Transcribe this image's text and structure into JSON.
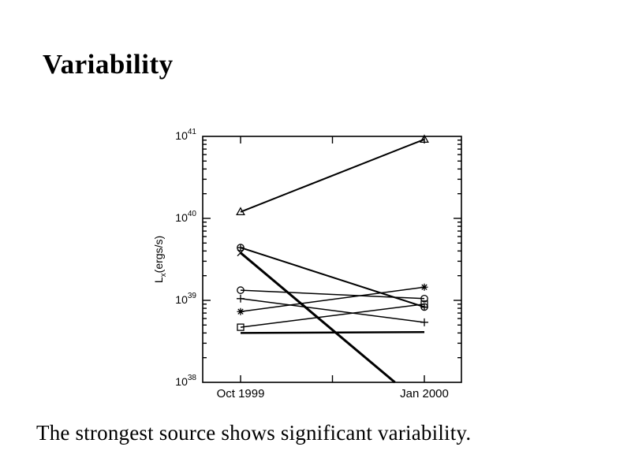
{
  "slide": {
    "title": "Variability",
    "caption": "The strongest source shows significant variability."
  },
  "chart_data": {
    "type": "line",
    "title": "",
    "xlabel": "",
    "x_categories": [
      "Oct 1999",
      "Jan 2000"
    ],
    "ylabel": {
      "base": "L",
      "sub": "x",
      "rest": "(ergs/s)"
    },
    "y_scale": "log",
    "ylim": [
      1e+38,
      1e+41
    ],
    "y_tick_exponents": [
      41,
      40,
      39,
      38
    ],
    "grid": false,
    "legend": false,
    "colors": {
      "fg": "#000000",
      "bg": "#ffffff"
    },
    "series": [
      {
        "name": "source-triangle",
        "marker": "triangle",
        "values": [
          1.2e+40,
          9.2e+40
        ],
        "lw": 2.0
      },
      {
        "name": "source-circle-plus",
        "marker": "circle-plus",
        "values": [
          4.4e+39,
          8.3e+38
        ],
        "lw": 2.0
      },
      {
        "name": "source-cross",
        "marker": "cross",
        "values": [
          3.8e+39,
          5e+37
        ],
        "lw": 3.0,
        "note": "drops below 1e38; line clipped at bottom axis"
      },
      {
        "name": "source-circle",
        "marker": "circle",
        "values": [
          1.33e+39,
          1.05e+39
        ],
        "lw": 1.5
      },
      {
        "name": "source-plus",
        "marker": "plus",
        "values": [
          1.05e+39,
          5.4e+38
        ],
        "lw": 1.5
      },
      {
        "name": "source-asterisk",
        "marker": "asterisk",
        "values": [
          7.3e+38,
          1.45e+39
        ],
        "lw": 1.5
      },
      {
        "name": "source-square",
        "marker": "square",
        "values": [
          4.7e+38,
          9e+38
        ],
        "lw": 1.5
      },
      {
        "name": "source-constant",
        "marker": "none",
        "values": [
          4e+38,
          4.1e+38
        ],
        "lw": 2.5
      }
    ]
  }
}
